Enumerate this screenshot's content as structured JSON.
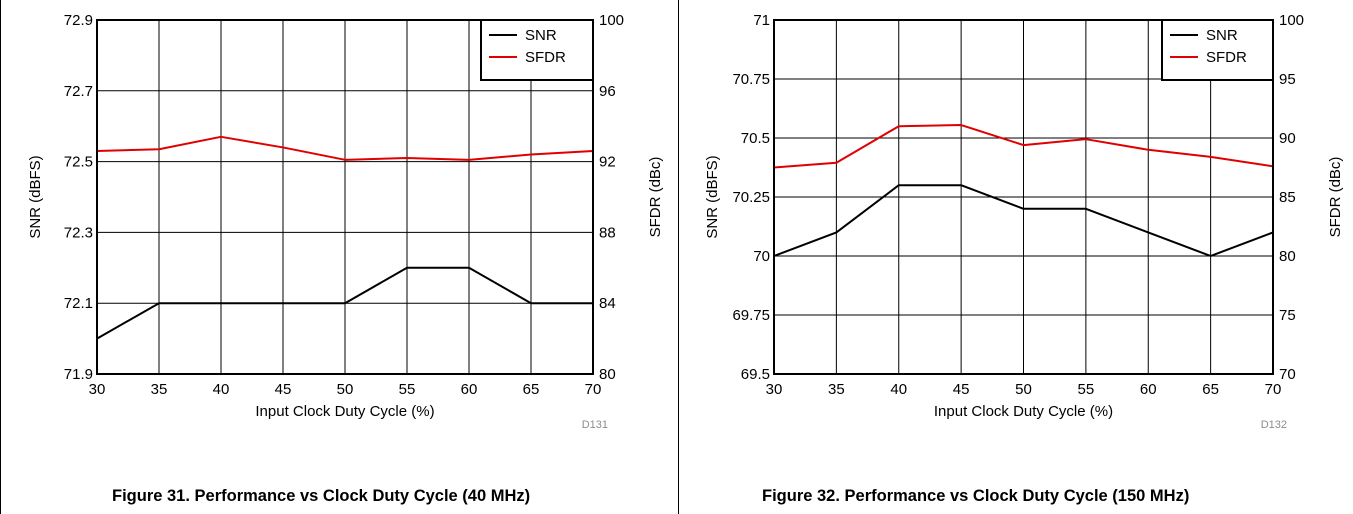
{
  "chart_data": [
    {
      "type": "line",
      "x": [
        30,
        35,
        40,
        45,
        50,
        55,
        60,
        65,
        70
      ],
      "xlabel": "Input Clock Duty Cycle (%)",
      "xlim": [
        30,
        70
      ],
      "x_ticks": [
        "30",
        "35",
        "40",
        "45",
        "50",
        "55",
        "60",
        "65",
        "70"
      ],
      "ylabel": "SNR (dBFS)",
      "ylim": [
        71.9,
        72.9
      ],
      "y_ticks": [
        "71.9",
        "72.1",
        "72.3",
        "72.5",
        "72.7",
        "72.9"
      ],
      "y2label": "SFDR (dBc)",
      "y2lim": [
        80,
        100
      ],
      "y2_ticks": [
        "80",
        "84",
        "88",
        "92",
        "96",
        "100"
      ],
      "grid": true,
      "legend_position": "top-right",
      "series": [
        {
          "name": "SNR",
          "axis": "left",
          "color": "#000000",
          "values": [
            72.0,
            72.1,
            72.1,
            72.1,
            72.1,
            72.2,
            72.2,
            72.1,
            72.1
          ]
        },
        {
          "name": "SFDR",
          "axis": "right",
          "color": "#e00000",
          "values": [
            92.6,
            92.7,
            93.4,
            92.8,
            92.1,
            92.2,
            92.1,
            92.4,
            92.6
          ]
        }
      ],
      "code": "D131",
      "caption": "Figure 31. Performance vs Clock Duty Cycle (40 MHz)"
    },
    {
      "type": "line",
      "x": [
        30,
        35,
        40,
        45,
        50,
        55,
        60,
        65,
        70
      ],
      "xlabel": "Input Clock Duty Cycle (%)",
      "xlim": [
        30,
        70
      ],
      "x_ticks": [
        "30",
        "35",
        "40",
        "45",
        "50",
        "55",
        "60",
        "65",
        "70"
      ],
      "ylabel": "SNR (dBFS)",
      "ylim": [
        69.5,
        71
      ],
      "y_ticks": [
        "69.5",
        "69.75",
        "70",
        "70.25",
        "70.5",
        "70.75",
        "71"
      ],
      "y2label": "SFDR (dBc)",
      "y2lim": [
        70,
        100
      ],
      "y2_ticks": [
        "70",
        "75",
        "80",
        "85",
        "90",
        "95",
        "100"
      ],
      "grid": true,
      "legend_position": "top-right",
      "series": [
        {
          "name": "SNR",
          "axis": "left",
          "color": "#000000",
          "values": [
            70.0,
            70.1,
            70.3,
            70.3,
            70.2,
            70.2,
            70.1,
            70.0,
            70.1
          ]
        },
        {
          "name": "SFDR",
          "axis": "right",
          "color": "#e00000",
          "values": [
            87.5,
            87.9,
            91.0,
            91.1,
            89.4,
            89.9,
            89.0,
            88.4,
            87.6
          ]
        }
      ],
      "code": "D132",
      "caption": "Figure 32. Performance vs Clock Duty Cycle (150 MHz)"
    }
  ]
}
